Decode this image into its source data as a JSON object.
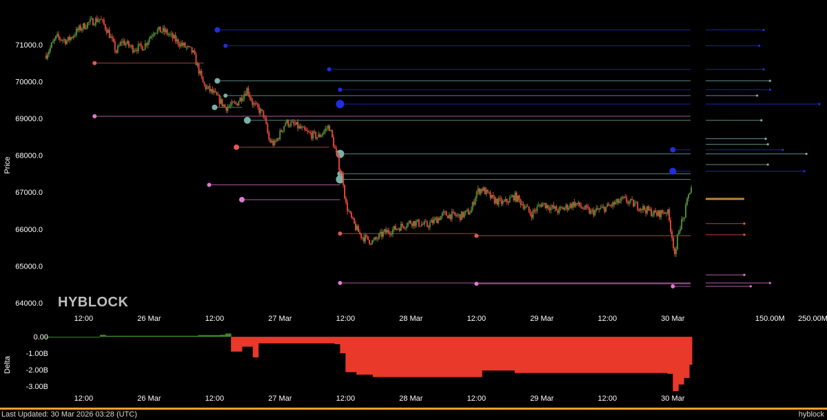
{
  "brand": "HYBLOCK",
  "footer": {
    "last_updated": "Last Updated: 30 Mar 2026 03:28 (UTC)",
    "brand": "hyblock"
  },
  "colors": {
    "background": "#000000",
    "candle_up": "#4f8a34",
    "candle_down": "#e0463a",
    "delta_positive": "#3f8a2a",
    "delta_negative": "#e8392b",
    "bid_level": "#1f2ee0",
    "ask_level": "#e05a4f",
    "teal_level": "#7ab0a8",
    "pink_level": "#e07ad0",
    "orange_marker": "#f0a450",
    "footer_bar": "#f0a030"
  },
  "chart_data": [
    {
      "type": "line",
      "name": "price",
      "ylabel": "Price",
      "ylim": [
        64000,
        71800
      ],
      "yticks": [
        64000.0,
        65000.0,
        66000.0,
        67000.0,
        68000.0,
        69000.0,
        70000.0,
        71000.0
      ],
      "ytick_labels": [
        "64000.0",
        "65000.0",
        "66000.0",
        "67000.0",
        "68000.0",
        "69000.0",
        "70000.0",
        "71000.0"
      ],
      "xlim": [
        "2026-03-25T05:00",
        "2026-03-30T03:30"
      ],
      "xticks": [
        "2026-03-25T12:00",
        "2026-03-26T00:00",
        "2026-03-26T12:00",
        "2026-03-27T00:00",
        "2026-03-27T12:00",
        "2026-03-28T00:00",
        "2026-03-28T12:00",
        "2026-03-29T00:00",
        "2026-03-29T12:00",
        "2026-03-30T00:00"
      ],
      "xtick_labels": [
        "12:00",
        "26 Mar",
        "12:00",
        "27 Mar",
        "12:00",
        "28 Mar",
        "12:00",
        "29 Mar",
        "12:00",
        "30 Mar"
      ],
      "price_path": [
        [
          "2026-03-25T05:00",
          70700
        ],
        [
          "2026-03-25T07:00",
          71200
        ],
        [
          "2026-03-25T09:00",
          71100
        ],
        [
          "2026-03-25T11:00",
          71400
        ],
        [
          "2026-03-25T13:00",
          71600
        ],
        [
          "2026-03-25T15:00",
          71700
        ],
        [
          "2026-03-25T16:30",
          71350
        ],
        [
          "2026-03-25T18:00",
          70800
        ],
        [
          "2026-03-25T19:00",
          71100
        ],
        [
          "2026-03-25T21:00",
          70900
        ],
        [
          "2026-03-25T23:00",
          70950
        ],
        [
          "2026-03-26T01:00",
          71400
        ],
        [
          "2026-03-26T03:00",
          71350
        ],
        [
          "2026-03-26T05:00",
          71100
        ],
        [
          "2026-03-26T07:00",
          70900
        ],
        [
          "2026-03-26T08:00",
          70800
        ],
        [
          "2026-03-26T10:00",
          69900
        ],
        [
          "2026-03-26T12:00",
          69650
        ],
        [
          "2026-03-26T14:00",
          69300
        ],
        [
          "2026-03-26T16:00",
          69400
        ],
        [
          "2026-03-26T18:00",
          69800
        ],
        [
          "2026-03-26T19:00",
          69400
        ],
        [
          "2026-03-26T21:00",
          69100
        ],
        [
          "2026-03-26T22:00",
          68400
        ],
        [
          "2026-03-26T23:00",
          68300
        ],
        [
          "2026-03-27T01:00",
          68900
        ],
        [
          "2026-03-27T03:00",
          68800
        ],
        [
          "2026-03-27T05:00",
          68600
        ],
        [
          "2026-03-27T07:00",
          68500
        ],
        [
          "2026-03-27T09:00",
          68800
        ],
        [
          "2026-03-27T10:00",
          68200
        ],
        [
          "2026-03-27T11:00",
          67600
        ],
        [
          "2026-03-27T11:30",
          67400
        ],
        [
          "2026-03-27T12:00",
          66700
        ],
        [
          "2026-03-27T13:00",
          66300
        ],
        [
          "2026-03-27T14:00",
          66000
        ],
        [
          "2026-03-27T15:00",
          65800
        ],
        [
          "2026-03-27T17:00",
          65650
        ],
        [
          "2026-03-27T19:00",
          65900
        ],
        [
          "2026-03-27T21:00",
          66000
        ],
        [
          "2026-03-28T00:00",
          66200
        ],
        [
          "2026-03-28T03:00",
          66100
        ],
        [
          "2026-03-28T06:00",
          66400
        ],
        [
          "2026-03-28T09:00",
          66350
        ],
        [
          "2026-03-28T11:00",
          66500
        ],
        [
          "2026-03-28T12:00",
          67000
        ],
        [
          "2026-03-28T13:00",
          67100
        ],
        [
          "2026-03-28T15:00",
          66800
        ],
        [
          "2026-03-28T17:00",
          66700
        ],
        [
          "2026-03-28T19:00",
          66900
        ],
        [
          "2026-03-28T21:00",
          66600
        ],
        [
          "2026-03-28T22:00",
          66400
        ],
        [
          "2026-03-29T00:00",
          66700
        ],
        [
          "2026-03-29T03:00",
          66500
        ],
        [
          "2026-03-29T06:00",
          66700
        ],
        [
          "2026-03-29T09:00",
          66450
        ],
        [
          "2026-03-29T12:00",
          66600
        ],
        [
          "2026-03-29T15:00",
          66800
        ],
        [
          "2026-03-29T18:00",
          66600
        ],
        [
          "2026-03-29T21:00",
          66400
        ],
        [
          "2026-03-29T23:00",
          66500
        ],
        [
          "2026-03-29T23:45",
          65900
        ],
        [
          "2026-03-30T00:30",
          65200
        ],
        [
          "2026-03-30T01:00",
          66000
        ],
        [
          "2026-03-30T02:00",
          66300
        ],
        [
          "2026-03-30T03:00",
          67000
        ],
        [
          "2026-03-30T03:30",
          67200
        ]
      ],
      "levels": [
        {
          "price": 71400,
          "from": "2026-03-26T12:30",
          "color": "#1f2ee0",
          "r": 4
        },
        {
          "price": 70970,
          "from": "2026-03-26T14:00",
          "color": "#1f2ee0",
          "r": 3
        },
        {
          "price": 70500,
          "from": "2026-03-25T14:00",
          "to": "2026-03-26T10:00",
          "color": "#e05a4f",
          "r": 3
        },
        {
          "price": 70330,
          "from": "2026-03-27T09:00",
          "color": "#1f2ee0",
          "r": 3
        },
        {
          "price": 70020,
          "from": "2026-03-26T12:30",
          "color": "#7ab0a8",
          "r": 4
        },
        {
          "price": 69780,
          "from": "2026-03-27T11:00",
          "color": "#1f2ee0",
          "r": 3
        },
        {
          "price": 69620,
          "from": "2026-03-26T14:00",
          "color": "#7ab0a8",
          "r": 3
        },
        {
          "price": 69390,
          "from": "2026-03-27T11:00",
          "color": "#1f2ee0",
          "r": 6
        },
        {
          "price": 69300,
          "from": "2026-03-26T12:00",
          "to": "2026-03-26T17:00",
          "color": "#7ab0a8",
          "r": 4
        },
        {
          "price": 69060,
          "from": "2026-03-25T14:00",
          "color": "#e07ad0",
          "r": 3
        },
        {
          "price": 68950,
          "from": "2026-03-26T18:00",
          "color": "#7ab0a8",
          "r": 5
        },
        {
          "price": 68220,
          "from": "2026-03-26T16:00",
          "to": "2026-03-27T09:00",
          "color": "#e05a4f",
          "r": 4
        },
        {
          "price": 68040,
          "from": "2026-03-27T11:00",
          "color": "#7ab0a8",
          "r": 6
        },
        {
          "price": 67500,
          "from": "2026-03-27T11:00",
          "color": "#7ab0a8",
          "r": 4
        },
        {
          "price": 67350,
          "from": "2026-03-27T11:00",
          "color": "#7ab0a8",
          "r": 6
        },
        {
          "price": 67200,
          "from": "2026-03-26T11:00",
          "to": "2026-03-27T11:00",
          "color": "#e07ad0",
          "r": 3
        },
        {
          "price": 66800,
          "from": "2026-03-26T17:00",
          "to": "2026-03-27T11:00",
          "color": "#e07ad0",
          "r": 4
        },
        {
          "price": 65880,
          "from": "2026-03-27T11:00",
          "to": "2026-03-28T12:00",
          "color": "#e05a4f",
          "r": 3
        },
        {
          "price": 65820,
          "from": "2026-03-28T12:00",
          "color": "#e05a4f",
          "r": 3
        },
        {
          "price": 64540,
          "from": "2026-03-27T11:00",
          "color": "#e07ad0",
          "r": 3
        },
        {
          "price": 64520,
          "from": "2026-03-28T12:00",
          "color": "#e07ad0",
          "r": 3
        },
        {
          "price": 68150,
          "from": "2026-03-30T00:00",
          "color": "#1f2ee0",
          "r": 4
        },
        {
          "price": 67570,
          "from": "2026-03-30T00:00",
          "color": "#1f2ee0",
          "r": 5
        },
        {
          "price": 64450,
          "from": "2026-03-30T00:00",
          "color": "#e07ad0",
          "r": 3
        }
      ]
    },
    {
      "type": "bar",
      "name": "liquidity_profile",
      "xtick_labels": [
        "150.00M",
        "250.00M"
      ],
      "xticks": [
        150,
        250
      ],
      "xlim": [
        0,
        275
      ],
      "bars": [
        {
          "price": 71400,
          "value": 135,
          "color": "#1f2ee0"
        },
        {
          "price": 70970,
          "value": 125,
          "color": "#1f2ee0"
        },
        {
          "price": 70330,
          "value": 135,
          "color": "#1f2ee0"
        },
        {
          "price": 70020,
          "value": 150,
          "color": "#7ab0a8"
        },
        {
          "price": 69780,
          "value": 150,
          "color": "#1f2ee0"
        },
        {
          "price": 69620,
          "value": 120,
          "color": "#7ab0a8"
        },
        {
          "price": 69390,
          "value": 265,
          "color": "#1f2ee0"
        },
        {
          "price": 68950,
          "value": 130,
          "color": "#7ab0a8"
        },
        {
          "price": 68450,
          "value": 140,
          "color": "#7ab0a8"
        },
        {
          "price": 68300,
          "value": 145,
          "color": "#7ab0a8"
        },
        {
          "price": 68150,
          "value": 180,
          "color": "#1f2ee0"
        },
        {
          "price": 68040,
          "value": 235,
          "color": "#7ab0a8"
        },
        {
          "price": 67750,
          "value": 145,
          "color": "#7ab0a8"
        },
        {
          "price": 67570,
          "value": 230,
          "color": "#1f2ee0"
        },
        {
          "price": 66820,
          "value": 90,
          "color": "#f0a450"
        },
        {
          "price": 66150,
          "value": 90,
          "color": "#e05a4f"
        },
        {
          "price": 65850,
          "value": 90,
          "color": "#e05a4f"
        },
        {
          "price": 64760,
          "value": 90,
          "color": "#e07ad0"
        },
        {
          "price": 64540,
          "value": 150,
          "color": "#e07ad0"
        },
        {
          "price": 64450,
          "value": 105,
          "color": "#e07ad0"
        }
      ]
    },
    {
      "type": "area",
      "name": "delta",
      "ylabel": "Delta",
      "ylim": [
        -3.3,
        0.3
      ],
      "yticks": [
        0,
        -1,
        -2,
        -3
      ],
      "ytick_labels": [
        "0.00",
        "-1.00B",
        "-2.00B",
        "-3.00B"
      ],
      "xtick_labels": [
        "12:00",
        "26 Mar",
        "12:00",
        "27 Mar",
        "12:00",
        "28 Mar",
        "12:00",
        "29 Mar",
        "12:00",
        "30 Mar"
      ],
      "steps": [
        [
          "2026-03-25T05:00",
          0.0
        ],
        [
          "2026-03-25T15:00",
          0.12
        ],
        [
          "2026-03-25T16:00",
          0.06
        ],
        [
          "2026-03-26T09:00",
          0.1
        ],
        [
          "2026-03-26T13:00",
          0.12
        ],
        [
          "2026-03-26T14:00",
          0.2
        ],
        [
          "2026-03-26T15:00",
          -0.9
        ],
        [
          "2026-03-26T17:00",
          -0.6
        ],
        [
          "2026-03-26T19:00",
          -1.25
        ],
        [
          "2026-03-26T20:00",
          -0.4
        ],
        [
          "2026-03-27T10:00",
          -0.45
        ],
        [
          "2026-03-27T11:00",
          -1.0
        ],
        [
          "2026-03-27T12:00",
          -2.15
        ],
        [
          "2026-03-27T14:00",
          -2.3
        ],
        [
          "2026-03-27T17:00",
          -2.45
        ],
        [
          "2026-03-28T13:00",
          -2.05
        ],
        [
          "2026-03-28T19:00",
          -2.2
        ],
        [
          "2026-03-29T23:00",
          -2.25
        ],
        [
          "2026-03-30T00:00",
          -3.3
        ],
        [
          "2026-03-30T01:00",
          -2.9
        ],
        [
          "2026-03-30T02:00",
          -2.5
        ],
        [
          "2026-03-30T03:00",
          -1.7
        ],
        [
          "2026-03-30T03:30",
          -1.7
        ]
      ]
    }
  ]
}
